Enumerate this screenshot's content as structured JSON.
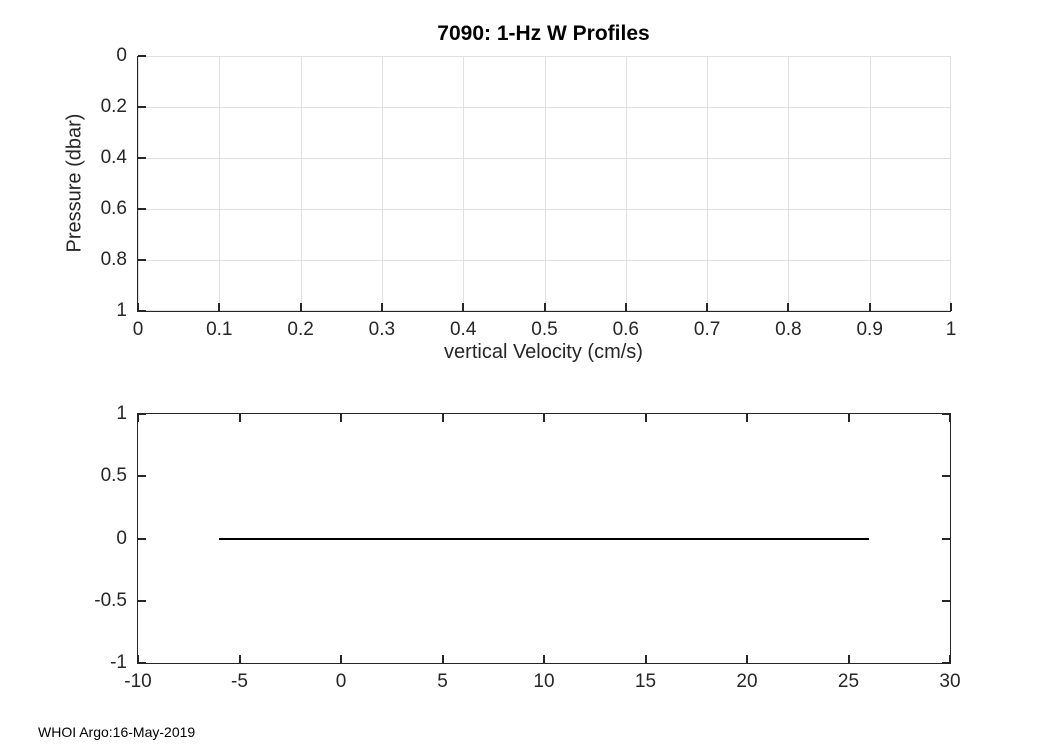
{
  "figure": {
    "footer": "WHOI Argo:16-May-2019",
    "background": "#ffffff"
  },
  "colors": {
    "axis": "#262626",
    "grid": "#e0e0e0",
    "text": "#262626",
    "title": "#000000",
    "line": "#000000"
  },
  "chart_data": [
    {
      "type": "line",
      "title": "7090: 1-Hz W Profiles",
      "xlabel": "vertical Velocity (cm/s)",
      "ylabel": "Pressure (dbar)",
      "xlim": [
        0,
        1
      ],
      "ylim": [
        0,
        1
      ],
      "y_reversed": true,
      "grid": true,
      "box": false,
      "xticks": [
        0,
        0.1,
        0.2,
        0.3,
        0.4,
        0.5,
        0.6,
        0.7,
        0.8,
        0.9,
        1
      ],
      "xtick_labels": [
        "0",
        "0.1",
        "0.2",
        "0.3",
        "0.4",
        "0.5",
        "0.6",
        "0.7",
        "0.8",
        "0.9",
        "1"
      ],
      "yticks": [
        0,
        0.2,
        0.4,
        0.6,
        0.8,
        1
      ],
      "ytick_labels": [
        "0",
        "0.2",
        "0.4",
        "0.6",
        "0.8",
        "1"
      ],
      "series": []
    },
    {
      "type": "line",
      "title": "",
      "xlabel": "",
      "ylabel": "",
      "xlim": [
        -10,
        30
      ],
      "ylim": [
        -1,
        1
      ],
      "y_reversed": false,
      "grid": false,
      "box": true,
      "xticks": [
        -10,
        -5,
        0,
        5,
        10,
        15,
        20,
        25,
        30
      ],
      "xtick_labels": [
        "-10",
        "-5",
        "0",
        "5",
        "10",
        "15",
        "20",
        "25",
        "30"
      ],
      "yticks": [
        -1,
        -0.5,
        0,
        0.5,
        1
      ],
      "ytick_labels": [
        "-1",
        "-0.5",
        "0",
        "0.5",
        "1"
      ],
      "series": [
        {
          "name": "w-profile-line",
          "x": [
            -6,
            26
          ],
          "y": [
            0,
            0
          ],
          "color": "#000000",
          "width": 2
        }
      ]
    }
  ]
}
